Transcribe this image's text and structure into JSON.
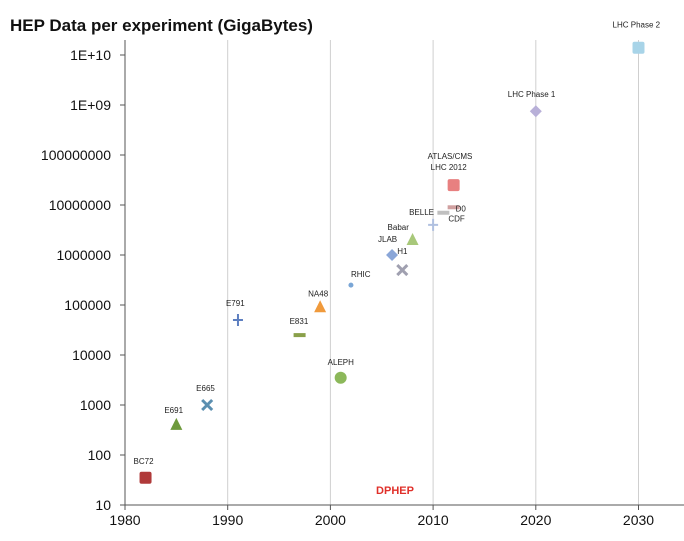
{
  "chart_data": {
    "type": "scatter",
    "title": "HEP Data per experiment (GigaBytes)",
    "xlabel": "",
    "ylabel": "",
    "x_scale": "linear",
    "y_scale": "log",
    "xlim": [
      1980,
      2034
    ],
    "ylim": [
      10,
      30000000000
    ],
    "x_ticks": [
      1980,
      1990,
      2000,
      2010,
      2020,
      2030
    ],
    "y_ticks": [
      {
        "value": 10,
        "label": "10"
      },
      {
        "value": 100,
        "label": "100"
      },
      {
        "value": 1000,
        "label": "1000"
      },
      {
        "value": 10000,
        "label": "10000"
      },
      {
        "value": 100000,
        "label": "100000"
      },
      {
        "value": 1000000,
        "label": "1000000"
      },
      {
        "value": 10000000,
        "label": "10000000"
      },
      {
        "value": 100000000,
        "label": "100000000"
      },
      {
        "value": 1000000000,
        "label": "1E+09"
      },
      {
        "value": 10000000000,
        "label": "1E+10"
      }
    ],
    "grid": {
      "x": true,
      "y": false
    },
    "legend": "none",
    "annotation": "DPHEP",
    "annotation_color": "#e0302a",
    "points": [
      {
        "label": "BC72",
        "x": 1982,
        "y": 35,
        "marker": "square",
        "color": "#b03a3a"
      },
      {
        "label": "E691",
        "x": 1985,
        "y": 400,
        "marker": "triangle",
        "color": "#6e9a3c"
      },
      {
        "label": "E665",
        "x": 1988,
        "y": 1000,
        "marker": "x",
        "color": "#5b8fb0"
      },
      {
        "label": "E791",
        "x": 1991,
        "y": 50000,
        "marker": "plus",
        "color": "#5d7fc0"
      },
      {
        "label": "E831",
        "x": 1997,
        "y": 25000,
        "marker": "dash",
        "color": "#8aa04a"
      },
      {
        "label": "NA48",
        "x": 1999,
        "y": 90000,
        "marker": "triangle",
        "color": "#f09a3c"
      },
      {
        "label": "ALEPH",
        "x": 2001,
        "y": 3500,
        "marker": "circle",
        "color": "#8cb85a"
      },
      {
        "label": "RHIC",
        "x": 2002,
        "y": 250000,
        "marker": "dot",
        "color": "#7aa6d6"
      },
      {
        "label": "JLAB",
        "x": 2006,
        "y": 1000000,
        "marker": "diamond",
        "color": "#8aa6d8"
      },
      {
        "label": "H1",
        "x": 2007,
        "y": 500000,
        "marker": "x",
        "color": "#a0a0b0"
      },
      {
        "label": "Babar",
        "x": 2008,
        "y": 2000000,
        "marker": "triangle",
        "color": "#a8c87a"
      },
      {
        "label": "BELLE",
        "x": 2010,
        "y": 4000000,
        "marker": "plus",
        "color": "#b0c0e0"
      },
      {
        "label": "CDF",
        "x": 2011,
        "y": 7000000,
        "marker": "dash",
        "color": "#c0c0c0"
      },
      {
        "label": "D0",
        "x": 2012,
        "y": 9000000,
        "marker": "dash",
        "color": "#d0a0a0"
      },
      {
        "label": "ATLAS/CMS LHC 2012",
        "x": 2012,
        "y": 25000000,
        "marker": "square",
        "color": "#e88080"
      },
      {
        "label": "LHC Phase 1",
        "x": 2020,
        "y": 750000000,
        "marker": "diamond",
        "color": "#b8b0d8"
      },
      {
        "label": "LHC Phase 2",
        "x": 2030,
        "y": 14000000000,
        "marker": "square",
        "color": "#a8d4e8"
      }
    ]
  }
}
